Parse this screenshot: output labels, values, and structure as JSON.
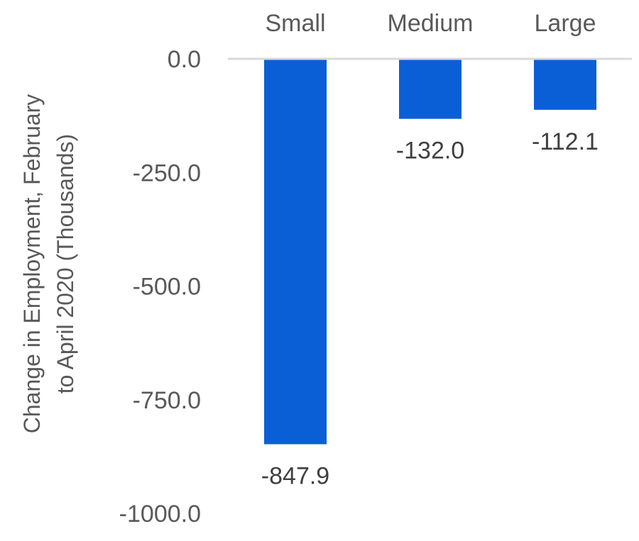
{
  "chart_data": {
    "type": "bar",
    "categories": [
      "Small",
      "Medium",
      "Large"
    ],
    "values": [
      -847.9,
      -132.0,
      -112.1
    ],
    "value_labels": [
      "-847.9",
      "-132.0",
      "-112.1"
    ],
    "ylabel_line1": "Change in Employment, February",
    "ylabel_line2": "to April 2020 (Thousands)",
    "yticks": [
      "0.0",
      "-250.0",
      "-500.0",
      "-750.0",
      "-1000.0"
    ],
    "ytick_values": [
      0,
      -250,
      -500,
      -750,
      -1000
    ],
    "ylim": [
      -1000,
      0
    ],
    "grid": false,
    "category_position": "top",
    "bar_color": "#0b5fd6",
    "baseline_color": "#d9d9d9"
  }
}
